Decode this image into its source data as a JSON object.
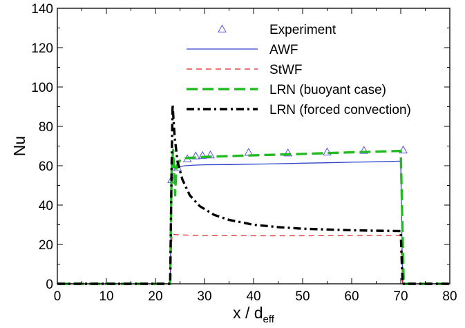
{
  "chart_data": {
    "type": "line",
    "xlabel": "x / d",
    "xlabel_subscript": "eff",
    "ylabel": "Nu",
    "xlim": [
      0,
      80
    ],
    "ylim": [
      0,
      140
    ],
    "xticks": [
      0,
      10,
      20,
      30,
      40,
      50,
      60,
      70,
      80
    ],
    "yticks": [
      0,
      20,
      40,
      60,
      80,
      100,
      120,
      140
    ],
    "grid": false,
    "legend_position": "top-right",
    "colors": {
      "Experiment": "#5555dd",
      "AWF": "#3344cc",
      "StWF": "#dd2222",
      "LRN (buoyant case)": "#22bb22",
      "LRN (forced convection)": "#000000"
    },
    "series": [
      {
        "name": "Experiment",
        "style": "markers",
        "marker": "triangle",
        "x": [
          23.3,
          24.5,
          26.5,
          28.2,
          29.6,
          31.2,
          39.0,
          47.0,
          55.0,
          62.5,
          70.5
        ],
        "y": [
          53.0,
          59.0,
          63.5,
          65.0,
          65.2,
          65.5,
          66.8,
          66.5,
          67.0,
          67.8,
          68.0
        ]
      },
      {
        "name": "AWF",
        "style": "solid",
        "x": [
          0,
          23.0,
          23.3,
          23.6,
          24.2,
          25.0,
          26.0,
          28.0,
          30.0,
          35.0,
          40.0,
          45.0,
          50.0,
          55.0,
          60.0,
          65.0,
          70.0,
          70.2,
          70.4,
          80
        ],
        "y": [
          0,
          0,
          56.0,
          60.0,
          59.0,
          59.5,
          60.0,
          60.3,
          60.5,
          60.6,
          60.8,
          61.0,
          61.3,
          61.5,
          61.8,
          62.0,
          62.3,
          30.0,
          0,
          0
        ]
      },
      {
        "name": "StWF",
        "style": "dashed",
        "x": [
          0,
          23.0,
          23.4,
          24.0,
          30.0,
          40.0,
          50.0,
          60.0,
          70.0,
          70.2,
          70.4,
          80
        ],
        "y": [
          0,
          0,
          25.5,
          25.0,
          24.5,
          24.4,
          24.4,
          24.5,
          24.6,
          12.0,
          0,
          0
        ]
      },
      {
        "name": "LRN (buoyant case)",
        "style": "long-dash",
        "x": [
          0,
          23.0,
          23.3,
          23.6,
          24.0,
          24.3,
          24.8,
          25.3,
          26.0,
          27.0,
          30.0,
          40.0,
          50.0,
          60.0,
          70.0,
          70.3,
          70.6,
          80
        ],
        "y": [
          0,
          0,
          58.0,
          68.0,
          45.0,
          60.0,
          62.0,
          63.5,
          63.8,
          64.0,
          64.5,
          65.3,
          66.0,
          66.8,
          67.5,
          35.0,
          0,
          0
        ]
      },
      {
        "name": "LRN (forced convection)",
        "style": "dash-dot",
        "x": [
          0,
          23.0,
          23.3,
          23.5,
          23.9,
          24.5,
          25.5,
          27.0,
          29.0,
          32.0,
          35.0,
          40.0,
          45.0,
          50.0,
          55.0,
          60.0,
          65.0,
          70.0,
          70.2,
          70.4,
          80
        ],
        "y": [
          0,
          0,
          60.0,
          91.0,
          75.0,
          62.0,
          53.0,
          45.0,
          39.5,
          35.0,
          32.5,
          30.0,
          28.8,
          28.0,
          27.6,
          27.2,
          27.0,
          26.8,
          12.0,
          0,
          0
        ]
      }
    ]
  }
}
